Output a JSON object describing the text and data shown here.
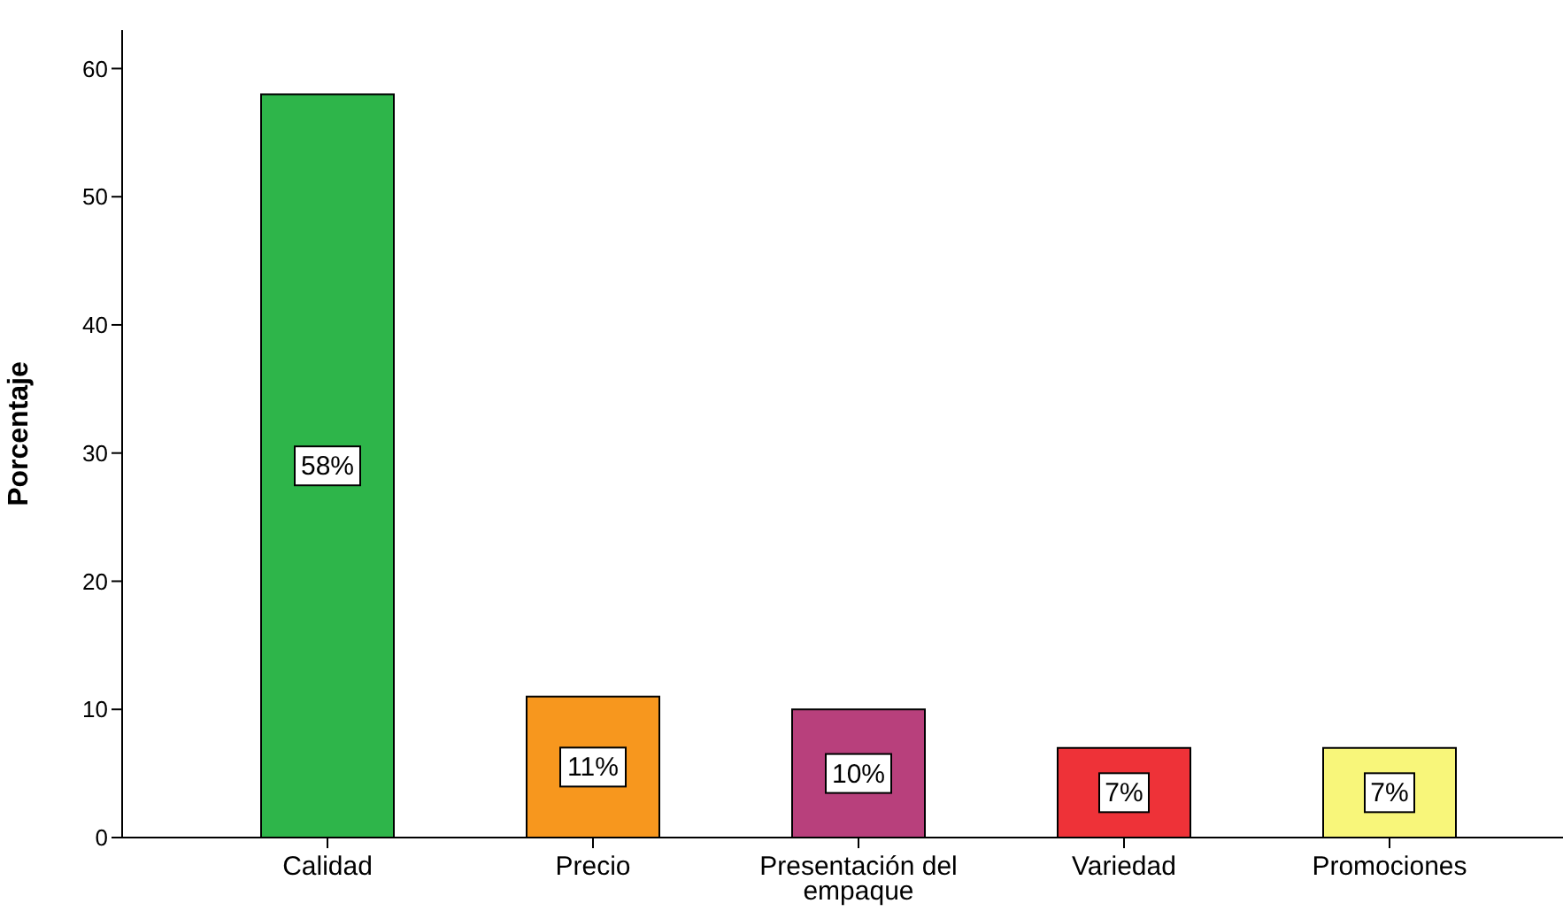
{
  "chart_data": {
    "type": "bar",
    "ylabel": "Porcentaje",
    "categories": [
      "Calidad",
      "Precio",
      "Presentación del empaque",
      "Variedad",
      "Promociones"
    ],
    "values": [
      58,
      11,
      10,
      7,
      7
    ],
    "colors": [
      "#2eb54a",
      "#f7971e",
      "#b8407c",
      "#ee3238",
      "#f8f67a"
    ],
    "value_labels": [
      "58%",
      "11%",
      "10%",
      "7%",
      "7%"
    ],
    "ylim": [
      0,
      63
    ],
    "yticks": [
      0,
      10,
      20,
      30,
      40,
      50,
      60
    ],
    "grid": false,
    "legend": false
  }
}
